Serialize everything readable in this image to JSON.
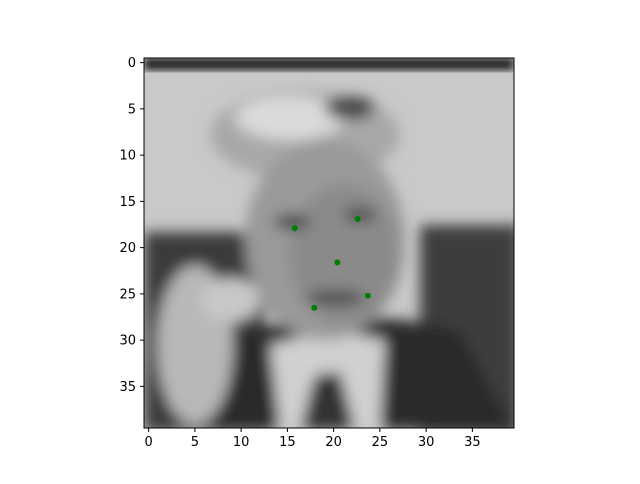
{
  "chart_data": {
    "type": "scatter",
    "image": {
      "kind": "grayscale-face-photo",
      "description_role": "background image shown in axes"
    },
    "xlim": [
      -0.5,
      39.5
    ],
    "ylim": [
      39.5,
      -0.5
    ],
    "y_inverted": true,
    "x_ticks": [
      0,
      5,
      10,
      15,
      20,
      25,
      30,
      35
    ],
    "y_ticks": [
      0,
      5,
      10,
      15,
      20,
      25,
      30,
      35
    ],
    "grid": false,
    "series": [
      {
        "color": "#008000",
        "points": [
          {
            "x": 15.8,
            "y": 17.9
          },
          {
            "x": 22.6,
            "y": 16.9
          },
          {
            "x": 20.4,
            "y": 21.6
          },
          {
            "x": 17.9,
            "y": 26.5
          },
          {
            "x": 23.7,
            "y": 25.2
          }
        ]
      }
    ]
  }
}
